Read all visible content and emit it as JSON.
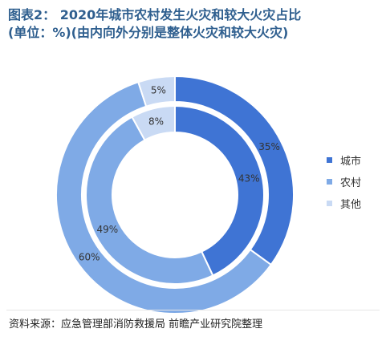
{
  "title": {
    "line1": "图表2： 2020年城市农村发生火灾和较大火灾占比",
    "line2": "(单位：%)(由内向外分别是整体火灾和较大火灾)"
  },
  "source": "资料来源：应急管理部消防救援局 前瞻产业研究院整理",
  "colors": {
    "city": "#3f74d4",
    "rural": "#7faae6",
    "other": "#c9daf4",
    "title": "#2f5f8f"
  },
  "chart_data": {
    "type": "pie",
    "subtype": "nested-donut",
    "categories": [
      "城市",
      "农村",
      "其他"
    ],
    "series": [
      {
        "ring": "inner",
        "values": [
          43,
          49,
          8
        ],
        "labels": [
          "43%",
          "49%",
          "8%"
        ]
      },
      {
        "ring": "outer",
        "values": [
          35,
          60,
          5
        ],
        "labels": [
          "35%",
          "60%",
          "5%"
        ]
      }
    ],
    "legend": {
      "position": "right",
      "entries": [
        "城市",
        "农村",
        "其他"
      ]
    }
  }
}
